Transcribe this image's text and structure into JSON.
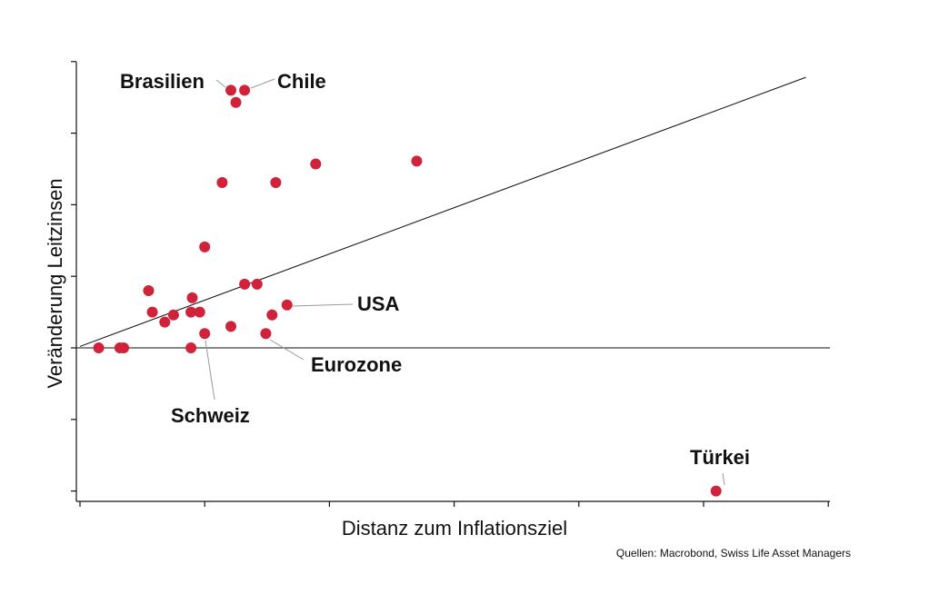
{
  "chart_data": {
    "type": "scatter",
    "xlabel": "Distanz zum Inflationsziel",
    "ylabel": "Veränderung Leitzinsen",
    "xlim": [
      0,
      6
    ],
    "ylim": [
      -2.15,
      4.05
    ],
    "x_ticks": [
      0,
      1,
      2,
      3,
      4,
      5,
      6
    ],
    "y_ticks": [
      -2,
      -1,
      0,
      1,
      2,
      3,
      4
    ],
    "tick_labels_shown": false,
    "grid": false,
    "legend": "none",
    "marker_color": "#d0223a",
    "zero_line": true,
    "trend_line": {
      "x": [
        0,
        5.82
      ],
      "y": [
        0.02,
        3.78
      ]
    },
    "points": [
      {
        "x": 1.21,
        "y": 3.6
      },
      {
        "x": 1.32,
        "y": 3.6
      },
      {
        "x": 1.25,
        "y": 3.43
      },
      {
        "x": 1.89,
        "y": 2.57
      },
      {
        "x": 2.7,
        "y": 2.61
      },
      {
        "x": 1.14,
        "y": 2.31
      },
      {
        "x": 1.57,
        "y": 2.31
      },
      {
        "x": 1.0,
        "y": 1.41
      },
      {
        "x": 0.55,
        "y": 0.8
      },
      {
        "x": 1.32,
        "y": 0.89
      },
      {
        "x": 1.42,
        "y": 0.89
      },
      {
        "x": 0.9,
        "y": 0.7
      },
      {
        "x": 1.66,
        "y": 0.6
      },
      {
        "x": 0.58,
        "y": 0.5
      },
      {
        "x": 0.89,
        "y": 0.5
      },
      {
        "x": 0.96,
        "y": 0.5
      },
      {
        "x": 0.75,
        "y": 0.46
      },
      {
        "x": 1.54,
        "y": 0.46
      },
      {
        "x": 0.68,
        "y": 0.36
      },
      {
        "x": 1.21,
        "y": 0.3
      },
      {
        "x": 1.0,
        "y": 0.2
      },
      {
        "x": 1.49,
        "y": 0.2
      },
      {
        "x": 0.15,
        "y": 0.0
      },
      {
        "x": 0.32,
        "y": 0.0
      },
      {
        "x": 0.35,
        "y": 0.0
      },
      {
        "x": 0.89,
        "y": 0.0
      },
      {
        "x": 5.1,
        "y": -2.0
      }
    ],
    "annotations": [
      {
        "text": "Brasilien",
        "point_index": 0
      },
      {
        "text": "Chile",
        "point_index": 1
      },
      {
        "text": "USA",
        "point_index": 12
      },
      {
        "text": "Eurozone",
        "point_index": 21
      },
      {
        "text": "Schweiz",
        "point_index": 20
      },
      {
        "text": "Türkei",
        "point_index": 26
      }
    ]
  },
  "source_note": "Quellen: Macrobond, Swiss Life Asset Managers"
}
